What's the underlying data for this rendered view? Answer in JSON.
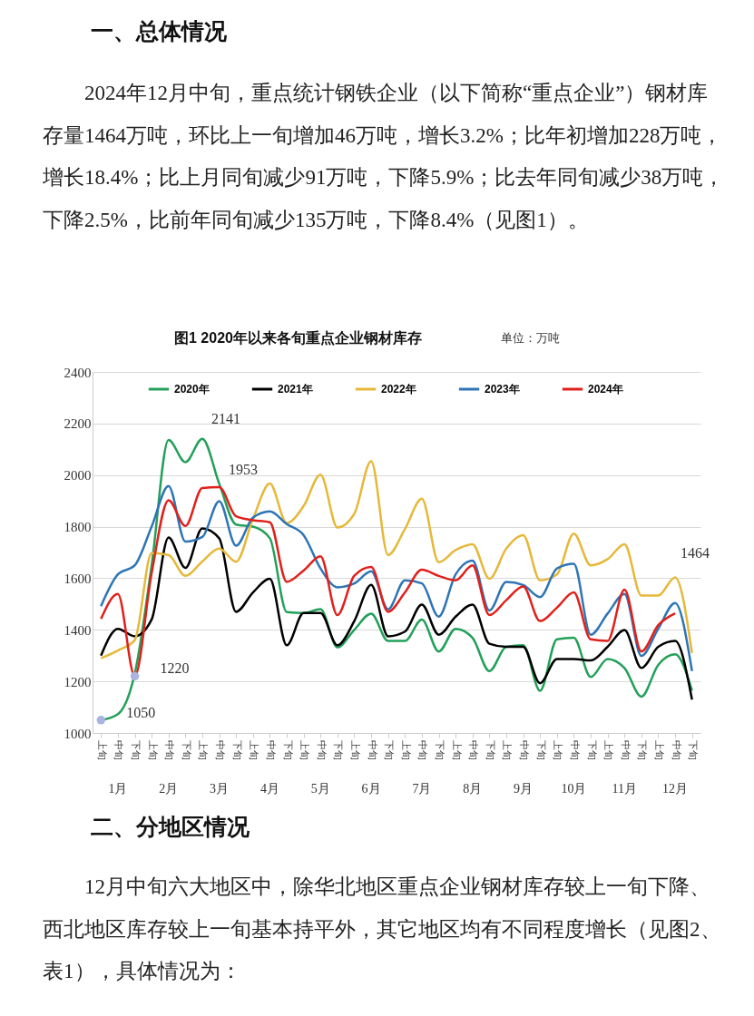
{
  "chart_data": {
    "type": "line",
    "title": "图1  2020年以来各旬重点企业钢材库存",
    "subtitle": "单位：万吨",
    "categories": [
      "上旬",
      "中旬",
      "下旬",
      "上旬",
      "中旬",
      "下旬",
      "上旬",
      "中旬",
      "下旬",
      "上旬",
      "中旬",
      "下旬",
      "上旬",
      "中旬",
      "下旬",
      "上旬",
      "中旬",
      "下旬",
      "上旬",
      "中旬",
      "下旬",
      "上旬",
      "中旬",
      "下旬",
      "上旬",
      "中旬",
      "下旬",
      "上旬",
      "中旬",
      "下旬",
      "上旬",
      "中旬",
      "下旬",
      "上旬",
      "中旬",
      "下旬"
    ],
    "series": [
      {
        "name": "2020年",
        "color": "#23a05a",
        "values": [
          1050,
          1073,
          1230,
          1650,
          2136,
          2050,
          2141,
          1967,
          1808,
          1800,
          1755,
          1469,
          1465,
          1480,
          1332,
          1400,
          1463,
          1357,
          1357,
          1440,
          1316,
          1404,
          1369,
          1240,
          1334,
          1340,
          1164,
          1363,
          1369,
          1217,
          1287,
          1252,
          1141,
          1264,
          1305,
          1164
        ]
      },
      {
        "name": "2021年",
        "color": "#000000",
        "values": [
          1300,
          1404,
          1375,
          1440,
          1758,
          1640,
          1793,
          1755,
          1470,
          1545,
          1598,
          1340,
          1465,
          1465,
          1340,
          1434,
          1574,
          1375,
          1393,
          1498,
          1381,
          1451,
          1498,
          1346,
          1334,
          1334,
          1193,
          1287,
          1287,
          1281,
          1334,
          1399,
          1252,
          1334,
          1357,
          1129
        ]
      },
      {
        "name": "2022年",
        "color": "#e6b83a",
        "values": [
          1290,
          1320,
          1360,
          1697,
          1690,
          1609,
          1665,
          1715,
          1664,
          1830,
          1967,
          1814,
          1880,
          2002,
          1797,
          1850,
          2054,
          1690,
          1791,
          1908,
          1662,
          1709,
          1732,
          1598,
          1715,
          1767,
          1592,
          1615,
          1773,
          1650,
          1674,
          1732,
          1533,
          1533,
          1603,
          1310
        ]
      },
      {
        "name": "2023年",
        "color": "#2e75b6",
        "values": [
          1492,
          1615,
          1650,
          1800,
          1958,
          1742,
          1760,
          1899,
          1726,
          1835,
          1859,
          1810,
          1767,
          1638,
          1565,
          1580,
          1627,
          1480,
          1592,
          1580,
          1451,
          1615,
          1668,
          1475,
          1586,
          1574,
          1527,
          1638,
          1656,
          1381,
          1463,
          1539,
          1299,
          1404,
          1504,
          1240
        ]
      },
      {
        "name": "2024年",
        "color": "#e0201b",
        "values": [
          1442,
          1539,
          1220,
          1620,
          1902,
          1803,
          1950,
          1953,
          1840,
          1825,
          1817,
          1586,
          1630,
          1685,
          1457,
          1610,
          1644,
          1470,
          1545,
          1633,
          1609,
          1592,
          1650,
          1457,
          1515,
          1568,
          1434,
          1486,
          1545,
          1363,
          1357,
          1556,
          1316,
          1418,
          1464,
          null
        ]
      }
    ],
    "ylim": [
      1000,
      2400
    ],
    "yticks": [
      1000,
      1200,
      1400,
      1600,
      1800,
      2000,
      2200,
      2400
    ],
    "grid": "y",
    "legend": "top",
    "annotations": [
      "1月",
      "2月",
      "3月",
      "4月",
      "5月",
      "6月",
      "7月",
      "8月",
      "9月",
      "10月",
      "11月",
      "12月",
      {
        "text": "1050",
        "x": "上旬",
        "y": 1050
      },
      {
        "text": "1220",
        "x": "下旬",
        "y": 1220
      },
      "2141",
      "1953",
      "1464",
      "一、总体情况",
      "2024年12月中旬，重点统计钢铁企业（以下简称“重点企业”）钢材库存量1464万吨，环比上一旬增加46万吨，增长3.2%；比年初增加228万吨，增长18.4%；比上月同旬减少91万吨，下降5.9%；比去年同旬减少38万吨，下降2.5%，比前年同旬减少135万吨，下降8.4%（见图1）。",
      "二、分地区情况",
      "12月中旬六大地区中，除华北地区重点企业钢材库存较上一旬下降、西北地区库存较上一旬基本持平外，其它地区均有不同程度增长（见图2、表1），具体情况为："
    ]
  }
}
